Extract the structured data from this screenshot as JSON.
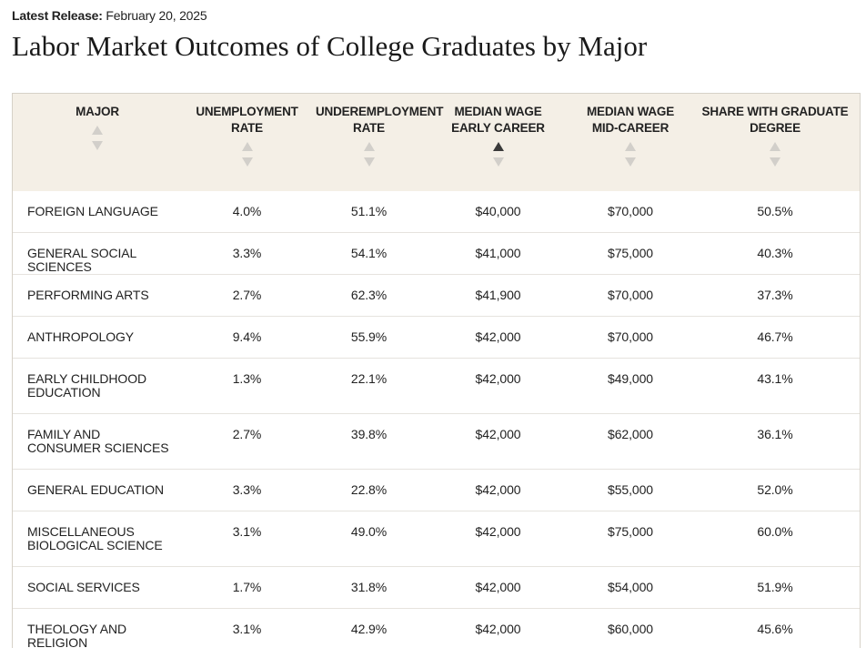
{
  "release": {
    "label": "Latest Release:",
    "date": "February 20, 2025"
  },
  "title": "Labor Market Outcomes of College Graduates by Major",
  "chart_data": {
    "type": "table",
    "title": "Labor Market Outcomes of College Graduates by Major",
    "columns": [
      "MAJOR",
      "UNEMPLOYMENT\nRATE",
      "UNDEREMPLOYMENT\nRATE",
      "MEDIAN WAGE\nEARLY CAREER",
      "MEDIAN WAGE\nMID-CAREER",
      "SHARE WITH GRADUATE\nDEGREE"
    ],
    "sorted_column": 3,
    "sort_direction": "ascending",
    "rows": [
      [
        "FOREIGN LANGUAGE",
        "4.0%",
        "51.1%",
        "$40,000",
        "$70,000",
        "50.5%"
      ],
      [
        "GENERAL SOCIAL SCIENCES",
        "3.3%",
        "54.1%",
        "$41,000",
        "$75,000",
        "40.3%"
      ],
      [
        "PERFORMING ARTS",
        "2.7%",
        "62.3%",
        "$41,900",
        "$70,000",
        "37.3%"
      ],
      [
        "ANTHROPOLOGY",
        "9.4%",
        "55.9%",
        "$42,000",
        "$70,000",
        "46.7%"
      ],
      [
        "EARLY CHILDHOOD EDUCATION",
        "1.3%",
        "22.1%",
        "$42,000",
        "$49,000",
        "43.1%"
      ],
      [
        "FAMILY AND CONSUMER SCIENCES",
        "2.7%",
        "39.8%",
        "$42,000",
        "$62,000",
        "36.1%"
      ],
      [
        "GENERAL EDUCATION",
        "3.3%",
        "22.8%",
        "$42,000",
        "$55,000",
        "52.0%"
      ],
      [
        "MISCELLANEOUS BIOLOGICAL SCIENCE",
        "3.1%",
        "49.0%",
        "$42,000",
        "$75,000",
        "60.0%"
      ],
      [
        "SOCIAL SERVICES",
        "1.7%",
        "31.8%",
        "$42,000",
        "$54,000",
        "51.9%"
      ],
      [
        "THEOLOGY AND RELIGION",
        "3.1%",
        "42.9%",
        "$42,000",
        "$60,000",
        "45.6%"
      ]
    ]
  },
  "colors": {
    "header_bg": "#f4efe6",
    "sort_inactive": "#d2cfca",
    "sort_active": "#3a3a3a",
    "row_border": "#e6e3de"
  },
  "icons": {
    "sort_up": "triangle-up-icon",
    "sort_down": "triangle-down-icon"
  }
}
